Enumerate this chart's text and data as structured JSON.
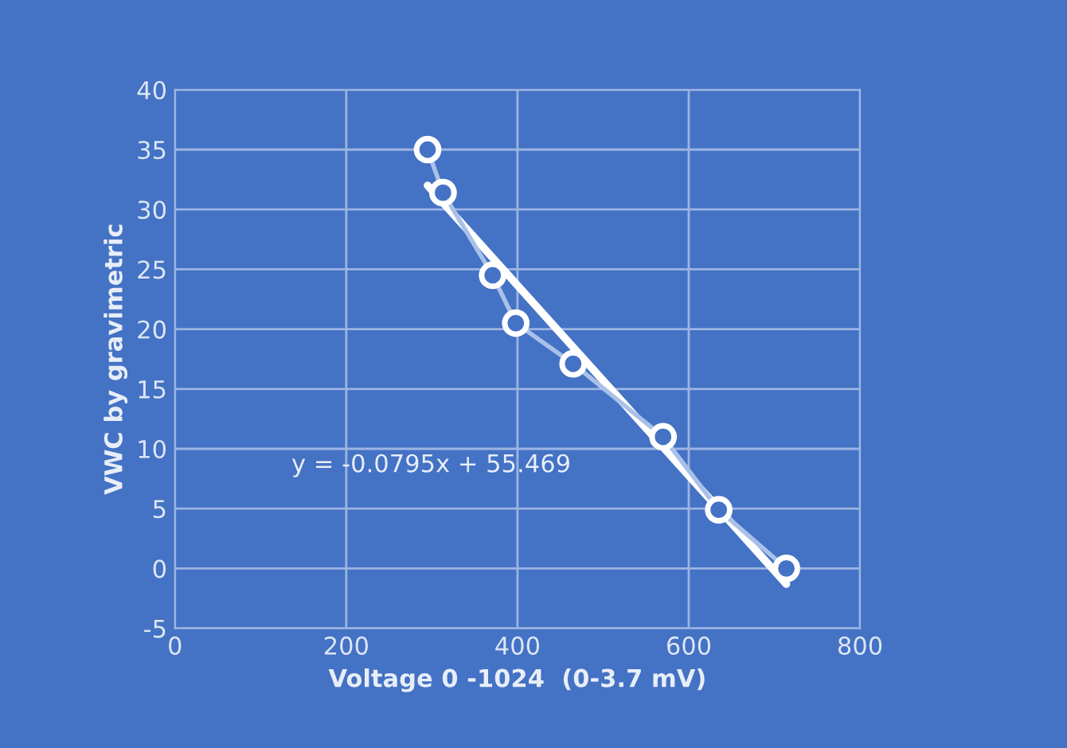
{
  "chart_data": {
    "type": "line",
    "xlabel": "Voltage 0 -1024  (0-3.7 mV)",
    "ylabel": "VWC by gravimetric",
    "xlim": [
      0,
      800
    ],
    "xticks": [
      0,
      200,
      400,
      600,
      800
    ],
    "ylim": [
      -5,
      40
    ],
    "yticks": [
      -5,
      0,
      5,
      10,
      15,
      20,
      25,
      30,
      35,
      40
    ],
    "grid": true,
    "series": [
      {
        "color": "#a9c1e8",
        "marker": "circle",
        "x": [
          295,
          313,
          371,
          398,
          465,
          570,
          635,
          714
        ],
        "values": [
          35.0,
          31.4,
          24.5,
          20.5,
          17.1,
          11.0,
          4.9,
          0.0
        ]
      },
      {
        "color": "#ffffff",
        "marker": "none",
        "x": [
          295,
          714
        ],
        "values": [
          32.0,
          -1.3
        ]
      }
    ],
    "annotations": [
      "y = -0.0795x + 55.469"
    ]
  }
}
